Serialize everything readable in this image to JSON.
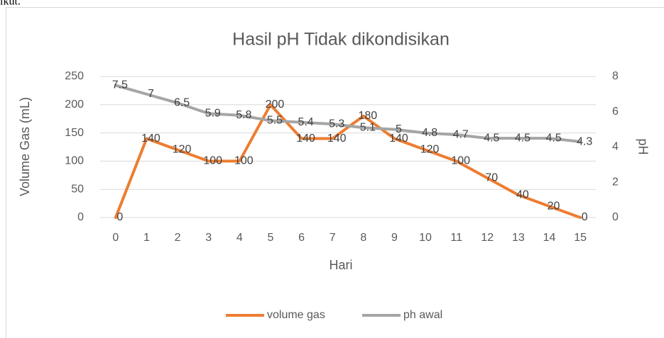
{
  "page_text": "ikut.",
  "chart_data": {
    "type": "line",
    "title": "Hasil pH Tidak dikondisikan",
    "x_label": "Hari",
    "y_label": "Volume Gas (mL)",
    "y2_label": "pH",
    "categories": [
      "0",
      "1",
      "2",
      "3",
      "4",
      "5",
      "6",
      "7",
      "8",
      "9",
      "10",
      "11",
      "12",
      "13",
      "14",
      "15"
    ],
    "series": [
      {
        "name": "volume gas",
        "color": "#ed7d31",
        "axis": "y",
        "values": [
          0,
          140,
          120,
          100,
          100,
          200,
          140,
          140,
          180,
          140,
          120,
          100,
          70,
          40,
          20,
          0
        ]
      },
      {
        "name": "ph awal",
        "color": "#a5a5a5",
        "axis": "y2",
        "values": [
          7.5,
          7,
          6.5,
          5.9,
          5.8,
          5.5,
          5.4,
          5.3,
          5.1,
          5,
          4.8,
          4.7,
          4.5,
          4.5,
          4.5,
          4.3
        ]
      }
    ],
    "ylim": [
      0,
      250
    ],
    "yticks": [
      0,
      50,
      100,
      150,
      200,
      250
    ],
    "y2lim": [
      0,
      8
    ],
    "y2ticks": [
      0,
      2,
      4,
      6,
      8
    ],
    "grid": true,
    "data_labels": true,
    "legend": "bottom"
  }
}
